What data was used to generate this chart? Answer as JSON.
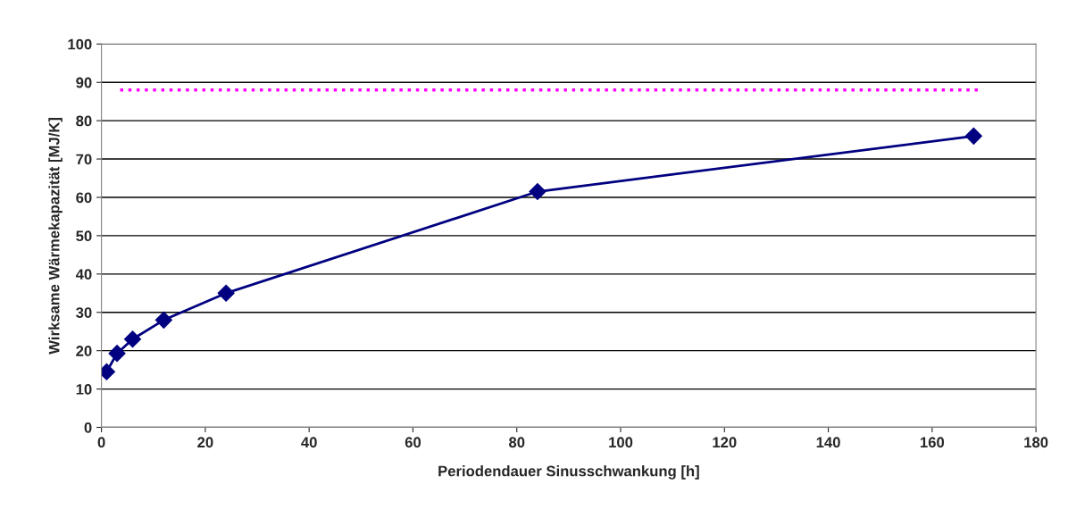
{
  "chart_data": {
    "type": "line",
    "xlabel": "Periodendauer Sinusschwankung [h]",
    "ylabel": "Wirksame Wärmekapazität [MJ/K]",
    "x": [
      1,
      3,
      6,
      12,
      24,
      84,
      168
    ],
    "series": [
      {
        "color": "#000080",
        "values": [
          14.5,
          19.3,
          23,
          28,
          35,
          61.5,
          76
        ]
      }
    ],
    "marker": "diamond",
    "line_style": "solid",
    "grid": "y",
    "legend": false,
    "xlim": [
      0,
      180
    ],
    "xticks": [
      0,
      20,
      40,
      60,
      80,
      100,
      120,
      140,
      160,
      180
    ],
    "ylim": [
      0,
      100
    ],
    "yticks": [
      0,
      10,
      20,
      30,
      40,
      50,
      60,
      70,
      80,
      90,
      100
    ],
    "ref_lines": [
      {
        "axis": "y",
        "value": 88,
        "color": "#ff00ff",
        "line_style": "dotted"
      }
    ]
  }
}
